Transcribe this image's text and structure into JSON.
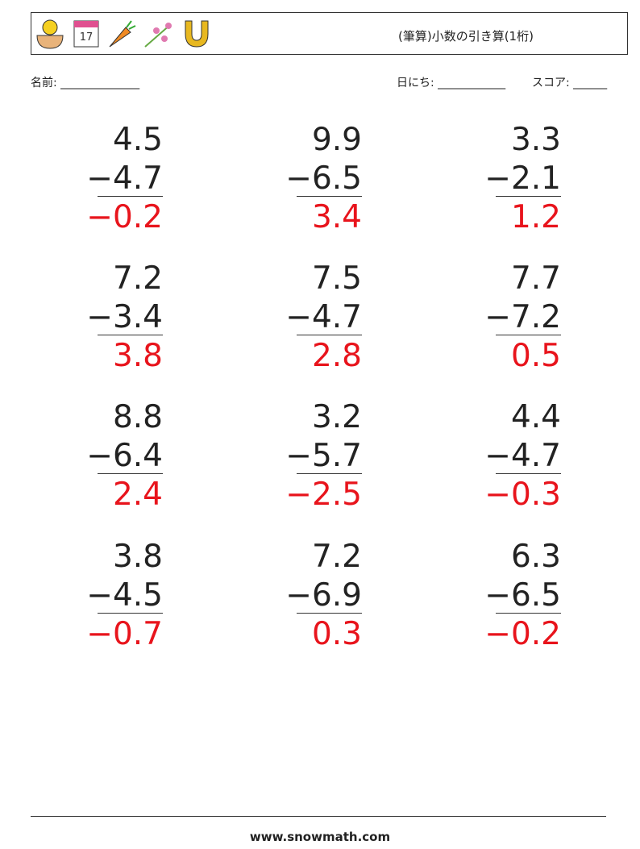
{
  "header": {
    "title": "(筆算)小数の引き算(1桁)"
  },
  "fields": {
    "name": "名前: ______________",
    "date": "日にち: ____________",
    "score": "スコア: ______"
  },
  "problems": [
    {
      "top": "4.5",
      "bottom": "−4.7",
      "answer": "−0.2"
    },
    {
      "top": "9.9",
      "bottom": "−6.5",
      "answer": "3.4"
    },
    {
      "top": "3.3",
      "bottom": "−2.1",
      "answer": "1.2"
    },
    {
      "top": "7.2",
      "bottom": "−3.4",
      "answer": "3.8"
    },
    {
      "top": "7.5",
      "bottom": "−4.7",
      "answer": "2.8"
    },
    {
      "top": "7.7",
      "bottom": "−7.2",
      "answer": "0.5"
    },
    {
      "top": "8.8",
      "bottom": "−6.4",
      "answer": "2.4"
    },
    {
      "top": "3.2",
      "bottom": "−5.7",
      "answer": "−2.5"
    },
    {
      "top": "4.4",
      "bottom": "−4.7",
      "answer": "−0.3"
    },
    {
      "top": "3.8",
      "bottom": "−4.5",
      "answer": "−0.7"
    },
    {
      "top": "7.2",
      "bottom": "−6.9",
      "answer": "0.3"
    },
    {
      "top": "6.3",
      "bottom": "−6.5",
      "answer": "−0.2"
    }
  ],
  "footer": {
    "site": "www.snowmath.com"
  }
}
